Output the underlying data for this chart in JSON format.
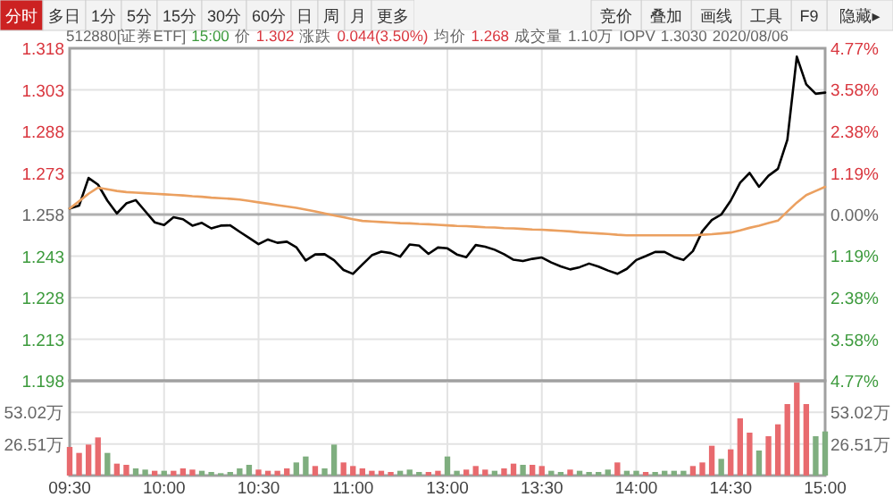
{
  "chart_data": [
    {
      "type": "other",
      "annotations": [
        "分时",
        "多日",
        "1分",
        "5分",
        "15分",
        "30分",
        "60分",
        "日",
        "周",
        "月",
        "更多",
        "竞价",
        "叠加",
        "画线",
        "工具",
        "F9",
        "隐藏▸"
      ]
    },
    {
      "type": "line",
      "annotations": [
        "512880[证券ETF]",
        "15:00",
        "价",
        "1.302",
        "涨跌",
        "0.044(3.50%)",
        "均价",
        "1.268",
        "成交量",
        "1.10万",
        "IOPV",
        "1.3030",
        "2020/08/06"
      ],
      "categories": [
        null,
        null,
        null,
        null,
        null,
        null,
        null,
        null,
        null,
        null,
        null,
        null,
        null,
        null,
        null,
        null,
        null,
        null,
        null,
        null,
        null,
        null,
        null,
        null,
        null,
        null,
        null,
        null,
        null,
        null,
        null,
        null,
        null,
        null,
        null,
        null,
        null,
        null,
        null,
        null,
        null,
        null,
        null,
        null,
        null,
        null,
        null,
        null,
        null,
        null,
        null,
        null,
        null,
        null,
        null,
        null,
        null,
        null,
        null,
        null,
        null,
        null,
        null,
        null,
        null,
        null,
        null,
        null,
        null,
        null,
        null,
        null,
        null,
        null,
        null,
        null,
        null,
        null,
        null,
        null,
        null
      ],
      "ylim": [
        1.198,
        1.318
      ],
      "yticks": [
        1.318,
        1.303,
        1.288,
        1.273,
        1.258,
        1.243,
        1.228,
        1.213,
        1.198
      ],
      "y2lim": [
        -4.77,
        4.77
      ],
      "y2ticks": [
        {
          "value": 4.77,
          "label": "4.77%"
        },
        {
          "value": 3.58,
          "label": "3.58%"
        },
        {
          "value": 2.38,
          "label": "2.38%"
        },
        {
          "value": 1.19,
          "label": "1.19%"
        },
        {
          "value": 0,
          "label": "0.00%"
        },
        {
          "value": -1.19,
          "label": "1.19%"
        },
        {
          "value": -2.38,
          "label": "2.38%"
        },
        {
          "value": -3.58,
          "label": "3.58%"
        },
        {
          "value": -4.77,
          "label": "4.77%"
        }
      ],
      "tick_labels": "y",
      "grid": true,
      "ref_lines": [
        {
          "axis": "y",
          "value": 1.258,
          "color": "#b0b0b0"
        }
      ],
      "series": [
        {
          "color": "#000000",
          "values": [
            1.2602,
            1.2612,
            1.2712,
            1.2688,
            1.263,
            1.2584,
            1.262,
            1.2632,
            1.2592,
            1.2552,
            1.2542,
            1.257,
            1.2563,
            1.254,
            1.255,
            1.253,
            1.254,
            1.2541,
            1.2518,
            1.2496,
            1.2473,
            1.249,
            1.2478,
            1.2482,
            1.2462,
            1.2414,
            1.2436,
            1.2437,
            1.2415,
            1.238,
            1.2366,
            1.24,
            1.2433,
            1.2446,
            1.2441,
            1.2428,
            1.2472,
            1.2468,
            1.2438,
            1.2461,
            1.2458,
            1.2436,
            1.2426,
            1.247,
            1.2464,
            1.2453,
            1.2437,
            1.2417,
            1.2412,
            1.242,
            1.2425,
            1.2407,
            1.2393,
            1.2382,
            1.239,
            1.2403,
            1.2392,
            1.2378,
            1.2366,
            1.2384,
            1.2416,
            1.243,
            1.2445,
            1.2445,
            1.2427,
            1.2416,
            1.2448,
            1.252,
            1.256,
            1.258,
            1.263,
            1.2695,
            1.273,
            1.268,
            1.272,
            1.2745,
            1.285,
            1.315,
            1.305,
            1.3016,
            1.302
          ]
        },
        {
          "color": "#eba060",
          "values": [
            1.2602,
            1.2628,
            1.2655,
            1.2677,
            1.2671,
            1.2665,
            1.2661,
            1.2659,
            1.2657,
            1.2655,
            1.2653,
            1.2651,
            1.2649,
            1.2646,
            1.2644,
            1.2641,
            1.2639,
            1.2637,
            1.2634,
            1.2629,
            1.2624,
            1.2619,
            1.2614,
            1.2609,
            1.2604,
            1.2598,
            1.2591,
            1.2584,
            1.2577,
            1.257,
            1.2563,
            1.2557,
            1.2555,
            1.2553,
            1.2551,
            1.2549,
            1.2548,
            1.2546,
            1.2545,
            1.2543,
            1.2541,
            1.2539,
            1.2538,
            1.2536,
            1.2534,
            1.2533,
            1.2531,
            1.253,
            1.2528,
            1.2526,
            1.2525,
            1.2523,
            1.2521,
            1.2519,
            1.2516,
            1.2514,
            1.2512,
            1.251,
            1.2507,
            1.2505,
            1.2505,
            1.2505,
            1.2505,
            1.2505,
            1.2505,
            1.2505,
            1.2505,
            1.2507,
            1.2509,
            1.2512,
            1.2515,
            1.2523,
            1.2532,
            1.254,
            1.2549,
            1.2558,
            1.2591,
            1.2623,
            1.265,
            1.2665,
            1.268
          ]
        }
      ]
    },
    {
      "type": "bar",
      "categories": [
        "09:30",
        null,
        null,
        null,
        null,
        null,
        null,
        null,
        null,
        null,
        "10:00",
        null,
        null,
        null,
        null,
        null,
        null,
        null,
        null,
        null,
        "10:30",
        null,
        null,
        null,
        null,
        null,
        null,
        null,
        null,
        null,
        "11:00",
        null,
        null,
        null,
        null,
        null,
        null,
        null,
        null,
        null,
        "13:00",
        null,
        null,
        null,
        null,
        null,
        null,
        null,
        null,
        null,
        "13:30",
        null,
        null,
        null,
        null,
        null,
        null,
        null,
        null,
        null,
        "14:00",
        null,
        null,
        null,
        null,
        null,
        null,
        null,
        null,
        null,
        "14:30",
        null,
        null,
        null,
        null,
        null,
        null,
        null,
        null,
        null,
        "15:00"
      ],
      "ylim": [
        0,
        79.53
      ],
      "yticks": [
        {
          "value": 26.51,
          "label": "26.51万"
        },
        {
          "value": 53.02,
          "label": "53.02万"
        }
      ],
      "y2lim": [
        0,
        79.53
      ],
      "y2ticks": [
        {
          "value": 26.51,
          "label": "26.51万"
        },
        {
          "value": 53.02,
          "label": "53.02万"
        }
      ],
      "grid": true,
      "values": [
        24,
        19,
        26,
        32,
        19,
        10,
        9,
        6,
        5,
        4,
        4,
        4,
        6,
        5,
        4,
        3,
        2,
        3,
        6,
        9,
        5,
        4,
        4,
        6,
        11,
        16,
        8,
        6,
        26,
        11,
        8,
        6,
        4,
        4,
        3,
        4,
        5,
        3,
        3,
        4,
        16,
        4,
        5,
        8,
        5,
        4,
        6,
        10,
        9,
        9,
        8,
        4,
        3,
        5,
        4,
        3,
        3,
        5,
        11,
        4,
        4,
        3,
        3,
        4,
        4,
        4,
        8,
        11,
        25,
        14,
        22,
        48,
        36,
        21,
        33,
        43,
        60,
        78,
        60,
        33,
        37
      ],
      "colors": [
        "#e86a6e",
        "#e86a6e",
        "#e86a6e",
        "#e86a6e",
        "#7fae7f",
        "#e86a6e",
        "#e86a6e",
        "#7fae7f",
        "#7fae7f",
        "#e86a6e",
        "#7fae7f",
        "#e86a6e",
        "#e86a6e",
        "#e86a6e",
        "#7fae7f",
        "#7fae7f",
        "#7fae7f",
        "#7fae7f",
        "#7fae7f",
        "#7fae7f",
        "#e86a6e",
        "#e86a6e",
        "#e86a6e",
        "#e86a6e",
        "#7fae7f",
        "#7fae7f",
        "#e86a6e",
        "#7fae7f",
        "#7fae7f",
        "#e86a6e",
        "#e86a6e",
        "#e86a6e",
        "#e86a6e",
        "#e86a6e",
        "#e86a6e",
        "#7fae7f",
        "#7fae7f",
        "#7fae7f",
        "#e86a6e",
        "#e86a6e",
        "#7fae7f",
        "#7fae7f",
        "#e86a6e",
        "#e86a6e",
        "#e86a6e",
        "#7fae7f",
        "#e86a6e",
        "#e86a6e",
        "#7fae7f",
        "#e86a6e",
        "#e86a6e",
        "#7fae7f",
        "#7fae7f",
        "#e86a6e",
        "#7fae7f",
        "#7fae7f",
        "#7fae7f",
        "#7fae7f",
        "#e86a6e",
        "#7fae7f",
        "#7fae7f",
        "#e86a6e",
        "#7fae7f",
        "#7fae7f",
        "#7fae7f",
        "#7fae7f",
        "#e86a6e",
        "#e86a6e",
        "#e86a6e",
        "#7fae7f",
        "#e86a6e",
        "#e86a6e",
        "#e86a6e",
        "#7fae7f",
        "#e86a6e",
        "#e86a6e",
        "#e86a6e",
        "#e86a6e",
        "#e86a6e",
        "#7fae7f",
        "#7fae7f"
      ]
    }
  ]
}
